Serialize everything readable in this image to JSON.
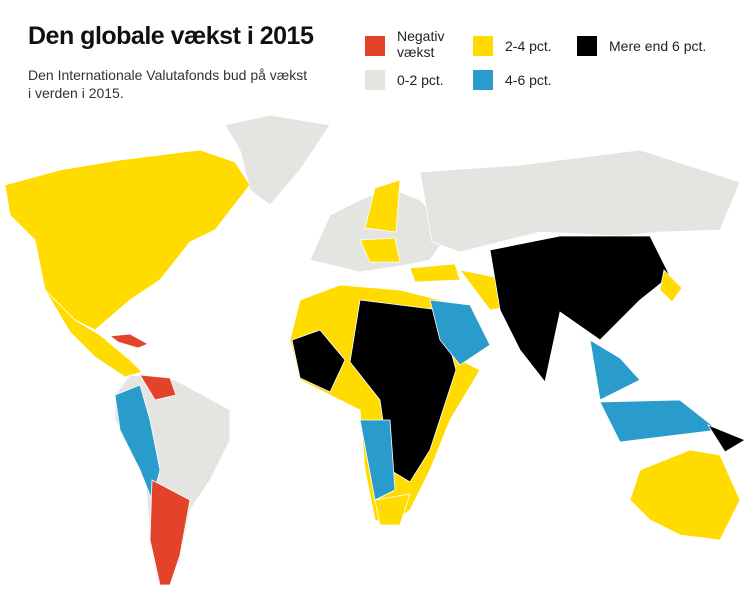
{
  "header": {
    "title": "Den globale vækst i 2015",
    "subtitle": "Den Internationale Valutafonds bud på vækst i verden i 2015."
  },
  "legend": [
    {
      "label": "Negativ vækst",
      "color": "#e2432a"
    },
    {
      "label": "0-2 pct.",
      "color": "#e4e4e1"
    },
    {
      "label": "2-4 pct.",
      "color": "#ffdb00"
    },
    {
      "label": "4-6 pct.",
      "color": "#2a9ccc"
    },
    {
      "label": "Mere end 6 pct.",
      "color": "#000000"
    }
  ]
}
